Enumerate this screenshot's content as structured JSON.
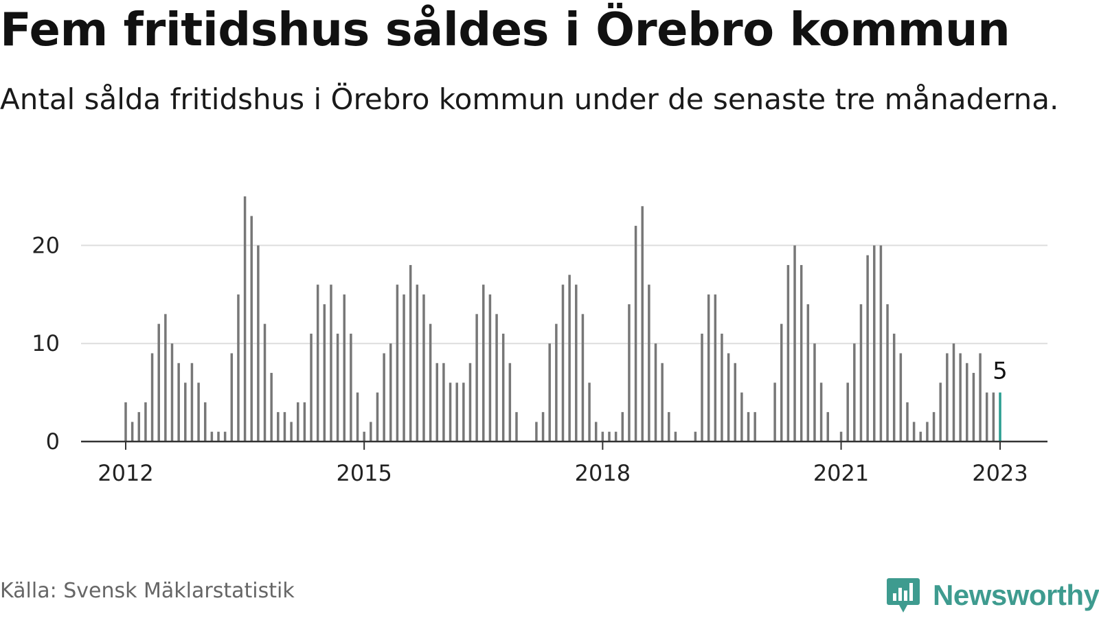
{
  "title": "Fem fritidshus såldes i Örebro kommun",
  "subtitle": "Antal sålda fritidshus i Örebro kommun under de senaste tre månaderna.",
  "source": "Källa: Svensk Mäklarstatistik",
  "brand": "Newsworthy",
  "colors": {
    "bar": "#777777",
    "highlight": "#2a9d90",
    "grid": "#dddddd",
    "axis": "#333333",
    "brand": "#3e9b8f"
  },
  "icons": {
    "logo": "bar-chart-speech-bubble-icon"
  },
  "chart_data": {
    "type": "bar",
    "title": "Fem fritidshus såldes i Örebro kommun",
    "subtitle": "Antal sålda fritidshus i Örebro kommun under de senaste tre månaderna.",
    "xlabel": "",
    "ylabel": "",
    "ylim": [
      0,
      25
    ],
    "yticks": [
      0,
      10,
      20
    ],
    "xticks": [
      {
        "label": "2012",
        "x": "2012-01"
      },
      {
        "label": "2015",
        "x": "2015-01"
      },
      {
        "label": "2018",
        "x": "2018-01"
      },
      {
        "label": "2021",
        "x": "2021-01"
      },
      {
        "label": "2023",
        "x": "2023-01"
      }
    ],
    "grid": true,
    "legend": "none",
    "highlight_label": "5",
    "x": [
      "2012-01",
      "2012-02",
      "2012-03",
      "2012-04",
      "2012-05",
      "2012-06",
      "2012-07",
      "2012-08",
      "2012-09",
      "2012-10",
      "2012-11",
      "2012-12",
      "2013-01",
      "2013-02",
      "2013-03",
      "2013-04",
      "2013-05",
      "2013-06",
      "2013-07",
      "2013-08",
      "2013-09",
      "2013-10",
      "2013-11",
      "2013-12",
      "2014-01",
      "2014-02",
      "2014-03",
      "2014-04",
      "2014-05",
      "2014-06",
      "2014-07",
      "2014-08",
      "2014-09",
      "2014-10",
      "2014-11",
      "2014-12",
      "2015-01",
      "2015-02",
      "2015-03",
      "2015-04",
      "2015-05",
      "2015-06",
      "2015-07",
      "2015-08",
      "2015-09",
      "2015-10",
      "2015-11",
      "2015-12",
      "2016-01",
      "2016-02",
      "2016-03",
      "2016-04",
      "2016-05",
      "2016-06",
      "2016-07",
      "2016-08",
      "2016-09",
      "2016-10",
      "2016-11",
      "2016-12",
      "2017-01",
      "2017-02",
      "2017-03",
      "2017-04",
      "2017-05",
      "2017-06",
      "2017-07",
      "2017-08",
      "2017-09",
      "2017-10",
      "2017-11",
      "2017-12",
      "2018-01",
      "2018-02",
      "2018-03",
      "2018-04",
      "2018-05",
      "2018-06",
      "2018-07",
      "2018-08",
      "2018-09",
      "2018-10",
      "2018-11",
      "2018-12",
      "2019-01",
      "2019-02",
      "2019-03",
      "2019-04",
      "2019-05",
      "2019-06",
      "2019-07",
      "2019-08",
      "2019-09",
      "2019-10",
      "2019-11",
      "2019-12",
      "2020-01",
      "2020-02",
      "2020-03",
      "2020-04",
      "2020-05",
      "2020-06",
      "2020-07",
      "2020-08",
      "2020-09",
      "2020-10",
      "2020-11",
      "2020-12",
      "2021-01",
      "2021-02",
      "2021-03",
      "2021-04",
      "2021-05",
      "2021-06",
      "2021-07",
      "2021-08",
      "2021-09",
      "2021-10",
      "2021-11",
      "2021-12",
      "2022-01",
      "2022-02",
      "2022-03",
      "2022-04",
      "2022-05",
      "2022-06",
      "2022-07",
      "2022-08",
      "2022-09",
      "2022-10",
      "2022-11",
      "2022-12",
      "2023-01"
    ],
    "values": [
      4,
      2,
      3,
      4,
      9,
      12,
      13,
      10,
      8,
      6,
      8,
      6,
      4,
      1,
      1,
      1,
      9,
      15,
      25,
      23,
      20,
      12,
      7,
      3,
      3,
      2,
      4,
      4,
      11,
      16,
      14,
      16,
      11,
      15,
      11,
      5,
      1,
      2,
      5,
      9,
      10,
      16,
      15,
      18,
      16,
      15,
      12,
      8,
      8,
      6,
      6,
      6,
      8,
      13,
      16,
      15,
      13,
      11,
      8,
      3,
      0,
      0,
      2,
      3,
      10,
      12,
      16,
      17,
      16,
      13,
      6,
      2,
      1,
      1,
      1,
      3,
      14,
      22,
      24,
      16,
      10,
      8,
      3,
      1,
      0,
      0,
      1,
      11,
      15,
      15,
      11,
      9,
      8,
      5,
      3,
      3,
      0,
      0,
      6,
      12,
      18,
      20,
      18,
      14,
      10,
      6,
      3,
      0,
      1,
      6,
      10,
      14,
      19,
      20,
      20,
      14,
      11,
      9,
      4,
      2,
      1,
      2,
      3,
      6,
      9,
      10,
      9,
      8,
      7,
      9,
      5,
      5,
      5
    ]
  }
}
